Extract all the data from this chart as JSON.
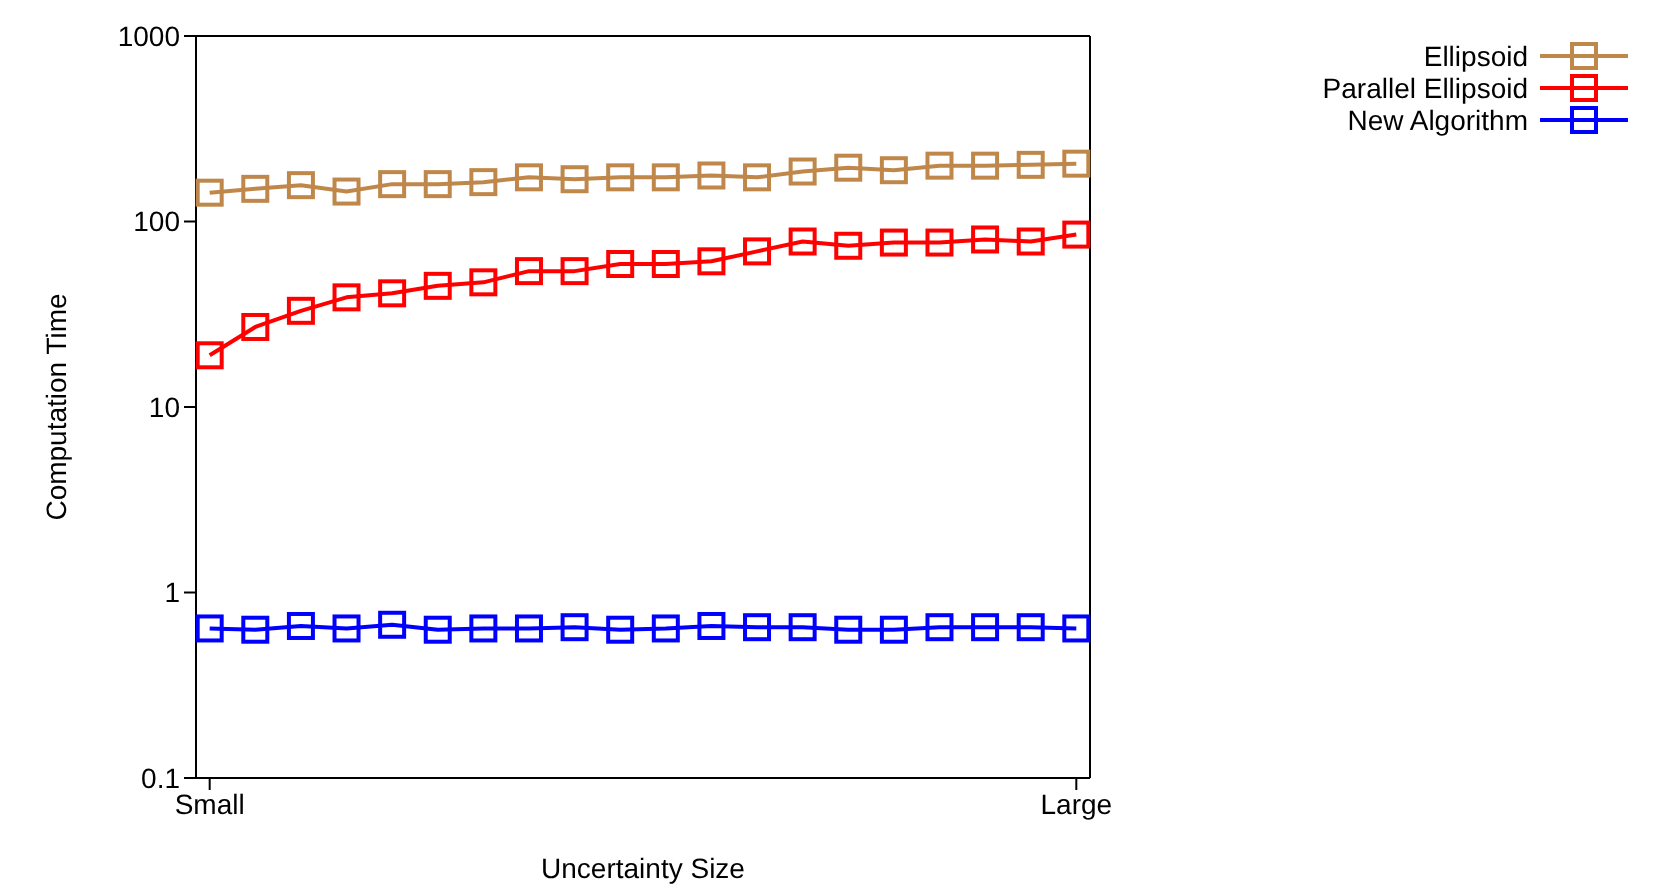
{
  "chart_data": {
    "type": "line",
    "xlabel": "Uncertainty Size",
    "ylabel": "Computation Time",
    "categories": [
      "Small",
      null,
      null,
      null,
      null,
      null,
      null,
      null,
      null,
      null,
      null,
      null,
      null,
      null,
      null,
      null,
      null,
      null,
      null,
      "Large"
    ],
    "series": [
      {
        "name": "Ellipsoid",
        "color": "#c0874a",
        "values": [
          143,
          150,
          157,
          145,
          159,
          159,
          163,
          173,
          169,
          173,
          173,
          177,
          173,
          186,
          195,
          189,
          200,
          200,
          202,
          205
        ]
      },
      {
        "name": "Parallel Ellipsoid",
        "color": "#ff0000",
        "values": [
          19,
          27,
          33,
          39,
          41,
          45,
          47,
          54,
          54,
          59,
          59,
          61,
          69,
          78,
          74,
          77,
          77,
          80,
          78,
          85
        ]
      },
      {
        "name": "New Algorithm",
        "color": "#0000ff",
        "values": [
          0.64,
          0.63,
          0.66,
          0.64,
          0.67,
          0.63,
          0.64,
          0.64,
          0.65,
          0.63,
          0.64,
          0.66,
          0.65,
          0.65,
          0.63,
          0.63,
          0.65,
          0.65,
          0.65,
          0.64
        ]
      }
    ],
    "log": "y",
    "ylim": [
      0.1,
      1000
    ],
    "yticks": [
      0.1,
      1,
      10,
      100,
      1000
    ],
    "legend": "top right",
    "marker": "square",
    "line_style": "solid"
  }
}
